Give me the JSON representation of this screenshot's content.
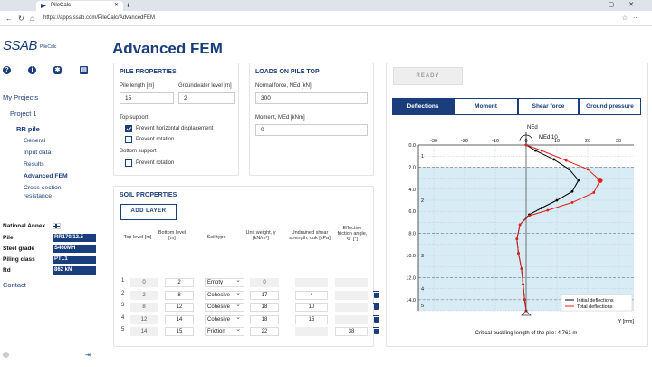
{
  "browser": {
    "tab_title": "PileCalc",
    "url": "https://apps.ssab.com/PileCalc/AdvancedFEM"
  },
  "logo": {
    "brand": "SSAB",
    "sub": "PileCalc"
  },
  "sidebar": {
    "my_projects": "My Projects",
    "project": "Project 1",
    "pile": "RR pile",
    "items": [
      "General",
      "Input data",
      "Results",
      "Advanced FEM",
      "Cross-section",
      "resistance"
    ],
    "contact": "Contact"
  },
  "info": {
    "national_annex": "National Annex",
    "pile_label": "Pile",
    "pile_value": "RR170/12.5",
    "steel_label": "Steel grade",
    "steel_value": "S460MH",
    "class_label": "Piling class",
    "class_value": "PTL1",
    "rd_label": "Rd",
    "rd_value": "862 kN"
  },
  "page": {
    "title": "Advanced FEM"
  },
  "pile_properties": {
    "title": "PILE PROPERTIES",
    "length_label": "Pile length [m]",
    "length_value": "15",
    "gw_label": "Groundwater level [m]",
    "gw_value": "2",
    "top_support": "Top support",
    "prevent_hd": "Prevent horizontal displacement",
    "prevent_rot": "Prevent rotation",
    "bottom_support": "Bottom support",
    "prevent_rot_b": "Prevent rotation"
  },
  "loads": {
    "title": "LOADS ON PILE TOP",
    "normal_label": "Normal force, NEd [kN]",
    "normal_value": "300",
    "moment_label": "Moment, MEd [kNm]",
    "moment_value": "0"
  },
  "soil": {
    "title": "SOIL PROPERTIES",
    "add_layer": "ADD LAYER",
    "headers": [
      "Top level [m]",
      "Bottom level [m]",
      "Soil type",
      "Unit weight, γ [kN/m³]",
      "Undrained shear strength, cuk [kPa]",
      "Effective friction angle, Φ' [°]"
    ],
    "rows": [
      {
        "n": "1",
        "top": "0",
        "bottom": "2",
        "type": "Empty",
        "gamma": "0",
        "cu": "",
        "phi": ""
      },
      {
        "n": "2",
        "top": "2",
        "bottom": "8",
        "type": "Cohesive",
        "gamma": "17",
        "cu": "4",
        "phi": ""
      },
      {
        "n": "3",
        "top": "8",
        "bottom": "12",
        "type": "Cohesive",
        "gamma": "18",
        "cu": "10",
        "phi": ""
      },
      {
        "n": "4",
        "top": "12",
        "bottom": "14",
        "type": "Cohesive",
        "gamma": "18",
        "cu": "15",
        "phi": ""
      },
      {
        "n": "5",
        "top": "14",
        "bottom": "15",
        "type": "Friction",
        "gamma": "22",
        "cu": "",
        "phi": "38"
      }
    ]
  },
  "results": {
    "ready": "READY",
    "tabs": [
      "Deflections",
      "Moment",
      "Shear force",
      "Ground pressure"
    ],
    "caption": "Critical buckling length of the pile: 4.761 m"
  },
  "chart_data": {
    "type": "line",
    "x_ticks": [
      "-30",
      "-20",
      "-10",
      "0",
      "10",
      "20",
      "30"
    ],
    "y_ticks": [
      "0.0",
      "2.0",
      "4.0",
      "6.0",
      "8.0",
      "10.0",
      "12.0",
      "14.0"
    ],
    "layer_labels": [
      "1",
      "2",
      "3",
      "4",
      "5"
    ],
    "xlabel": "Y [mm]",
    "top_labels": [
      "NEd",
      "MEd 10"
    ],
    "xlim": [
      -35,
      35
    ],
    "ylim": [
      0,
      15
    ],
    "series": [
      {
        "name": "Initial deflections",
        "color": "#000000",
        "x": [
          0,
          3,
          9,
          14,
          17,
          15,
          10,
          5,
          1,
          -2,
          -3,
          -2.5,
          -1.5,
          -1,
          -0.5,
          0
        ],
        "y": [
          0,
          0.5,
          1.3,
          2.2,
          3.2,
          4.2,
          5.0,
          5.7,
          6.3,
          7.2,
          8.5,
          9.8,
          11.2,
          12.6,
          14.0,
          15.0
        ]
      },
      {
        "name": "Total deflections",
        "color": "#e0201e",
        "x": [
          0,
          5,
          13,
          20,
          24,
          22,
          15,
          7,
          1,
          -2,
          -3,
          -2.5,
          -1.5,
          -1,
          -0.5,
          0
        ],
        "y": [
          0,
          0.5,
          1.4,
          2.2,
          3.2,
          4.3,
          5.2,
          5.9,
          6.4,
          7.2,
          8.5,
          9.8,
          11.2,
          12.6,
          14.0,
          15.0
        ]
      }
    ],
    "legend": [
      "Initial deflections",
      "Total deflections"
    ],
    "legend_position": "bottom-right"
  }
}
